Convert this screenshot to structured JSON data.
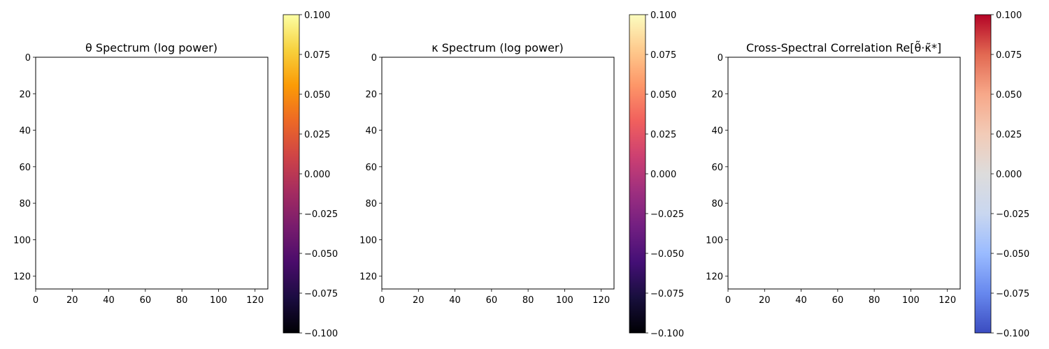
{
  "chart_data": [
    {
      "type": "heatmap",
      "title": "θ Spectrum (log power)",
      "xlabel": "",
      "ylabel": "",
      "xlim": [
        0,
        127
      ],
      "ylim": [
        127,
        0
      ],
      "x_ticks": [
        0,
        20,
        40,
        60,
        80,
        100,
        120
      ],
      "y_ticks": [
        0,
        20,
        40,
        60,
        80,
        100,
        120
      ],
      "values": [],
      "colorbar": {
        "colormap": "inferno",
        "range": [
          -0.1,
          0.1
        ],
        "ticks": [
          "0.100",
          "0.075",
          "0.050",
          "0.025",
          "0.000",
          "−0.025",
          "−0.050",
          "−0.075",
          "−0.100"
        ],
        "colors": [
          "#000004",
          "#1b0c41",
          "#4a0c6b",
          "#781c6d",
          "#a52c60",
          "#cf4446",
          "#ed6925",
          "#fb9b06",
          "#f7d13d",
          "#fcffa4"
        ]
      }
    },
    {
      "type": "heatmap",
      "title": "κ Spectrum (log power)",
      "xlabel": "",
      "ylabel": "",
      "xlim": [
        0,
        127
      ],
      "ylim": [
        127,
        0
      ],
      "x_ticks": [
        0,
        20,
        40,
        60,
        80,
        100,
        120
      ],
      "y_ticks": [
        0,
        20,
        40,
        60,
        80,
        100,
        120
      ],
      "values": [],
      "colorbar": {
        "colormap": "magma",
        "range": [
          -0.1,
          0.1
        ],
        "ticks": [
          "0.100",
          "0.075",
          "0.050",
          "0.025",
          "0.000",
          "−0.025",
          "−0.050",
          "−0.075",
          "−0.100"
        ],
        "colors": [
          "#000004",
          "#180f3d",
          "#440f76",
          "#721f81",
          "#9e2f7f",
          "#cd4071",
          "#f1605d",
          "#fd9668",
          "#feca8d",
          "#fcfdbf"
        ]
      }
    },
    {
      "type": "heatmap",
      "title": "Cross-Spectral Correlation Re[θ̃·κ̃*]",
      "xlabel": "",
      "ylabel": "",
      "xlim": [
        0,
        127
      ],
      "ylim": [
        127,
        0
      ],
      "x_ticks": [
        0,
        20,
        40,
        60,
        80,
        100,
        120
      ],
      "y_ticks": [
        0,
        20,
        40,
        60,
        80,
        100,
        120
      ],
      "values": [],
      "colorbar": {
        "colormap": "coolwarm",
        "range": [
          -0.1,
          0.1
        ],
        "ticks": [
          "0.100",
          "0.075",
          "0.050",
          "0.025",
          "0.000",
          "−0.025",
          "−0.050",
          "−0.075",
          "−0.100"
        ],
        "colors": [
          "#3b4cc0",
          "#6788ee",
          "#9abbff",
          "#c9d7f0",
          "#dddcdc",
          "#f2cbb7",
          "#f7a889",
          "#e26952",
          "#b40426"
        ]
      }
    }
  ]
}
